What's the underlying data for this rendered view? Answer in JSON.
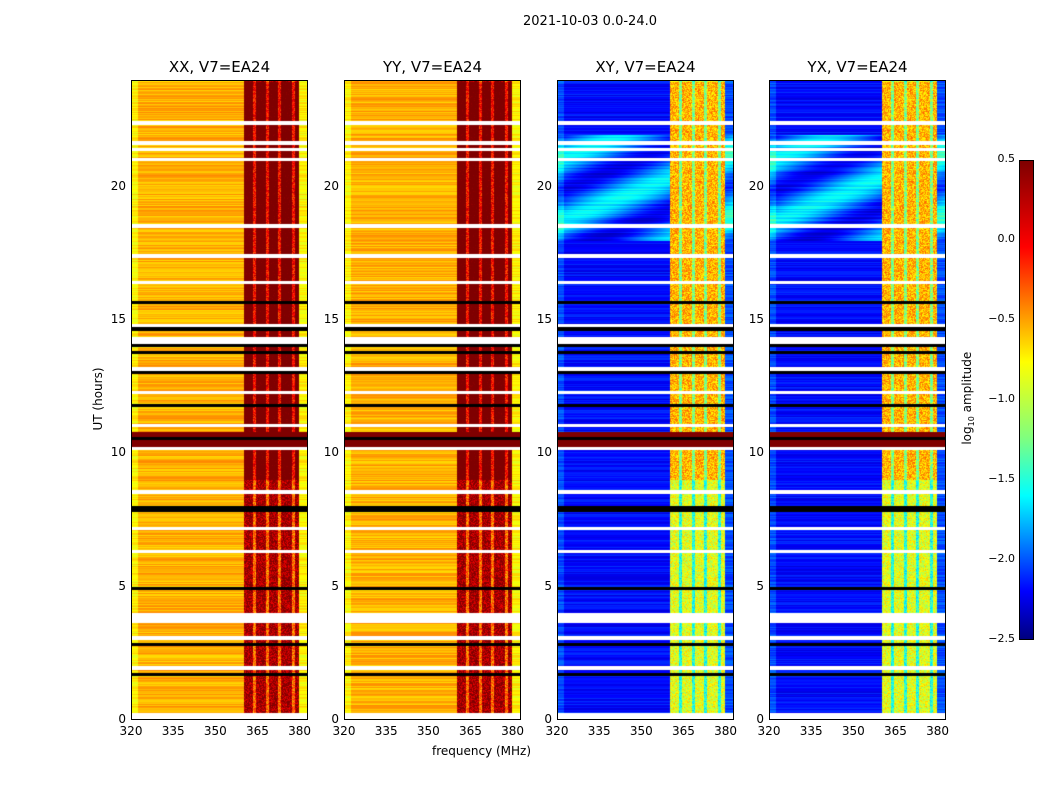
{
  "figure": {
    "suptitle": "2021-10-03 0.0-24.0",
    "xlabel": "frequency (MHz)",
    "ylabel": "UT (hours)",
    "colorbar": {
      "label_prefix": "log",
      "label_sub": "10",
      "label_suffix": " amplitude",
      "ticks": [
        "0.5",
        "0.0",
        "−0.5",
        "−1.0",
        "−1.5",
        "−2.0",
        "−2.5"
      ],
      "range": [
        -2.5,
        0.5
      ],
      "colormap": "jet"
    }
  },
  "chart_data": [
    {
      "type": "heatmap",
      "title": "XX, V7=EA24",
      "xlabel": "",
      "ylabel": "UT (hours)",
      "xlim": [
        320,
        383
      ],
      "ylim": [
        0,
        24
      ],
      "x_ticks": [
        "320",
        "335",
        "350",
        "365",
        "380"
      ],
      "y_ticks": [
        "0",
        "5",
        "10",
        "15",
        "20"
      ],
      "background_level": -0.4,
      "rfi_band_mhz": [
        360,
        380
      ],
      "rfi_level": 0.4
    },
    {
      "type": "heatmap",
      "title": "YY, V7=EA24",
      "xlabel": "frequency (MHz)",
      "ylabel": "",
      "xlim": [
        320,
        383
      ],
      "ylim": [
        0,
        24
      ],
      "x_ticks": [
        "320",
        "335",
        "350",
        "365",
        "380"
      ],
      "y_ticks": [
        "0",
        "5",
        "10",
        "15",
        "20"
      ],
      "background_level": -0.4,
      "rfi_band_mhz": [
        360,
        380
      ],
      "rfi_level": 0.4
    },
    {
      "type": "heatmap",
      "title": "XY, V7=EA24",
      "xlabel": "",
      "ylabel": "",
      "xlim": [
        320,
        383
      ],
      "ylim": [
        0,
        24
      ],
      "x_ticks": [
        "320",
        "335",
        "350",
        "365",
        "380"
      ],
      "y_ticks": [
        "0",
        "5",
        "10",
        "15",
        "20"
      ],
      "background_level": -2.1,
      "rfi_band_mhz": [
        360,
        380
      ],
      "rfi_level": -0.7
    },
    {
      "type": "heatmap",
      "title": "YX, V7=EA24",
      "xlabel": "",
      "ylabel": "",
      "xlim": [
        320,
        383
      ],
      "ylim": [
        0,
        24
      ],
      "x_ticks": [
        "320",
        "335",
        "350",
        "365",
        "380"
      ],
      "y_ticks": [
        "0",
        "5",
        "10",
        "15",
        "20"
      ],
      "background_level": -2.1,
      "rfi_band_mhz": [
        360,
        380
      ],
      "rfi_level": -0.7
    }
  ]
}
